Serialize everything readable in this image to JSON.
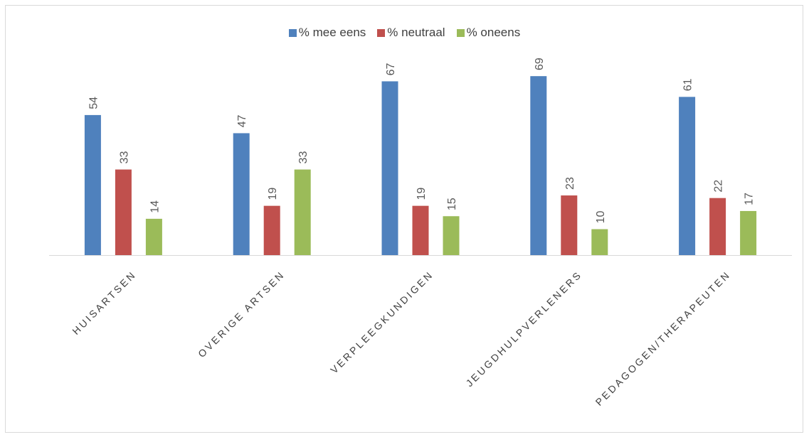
{
  "chart_data": {
    "type": "bar",
    "categories": [
      "HUISARTSEN",
      "OVERIGE ARTSEN",
      "VERPLEEGKUNDIGEN",
      "JEUGDHULPVERLENERS",
      "PEDAGOGEN/THERAPEUTEN"
    ],
    "series": [
      {
        "name": "% mee eens",
        "values": [
          54,
          47,
          67,
          69,
          61
        ],
        "color": "#4f81bd"
      },
      {
        "name": "% neutraal",
        "values": [
          33,
          19,
          19,
          23,
          22
        ],
        "color": "#c0504d"
      },
      {
        "name": "% oneens",
        "values": [
          14,
          33,
          15,
          10,
          17
        ],
        "color": "#9bbb59"
      }
    ],
    "ylim": [
      0,
      70
    ],
    "grid": false,
    "legend_position": "top",
    "data_labels": true
  }
}
